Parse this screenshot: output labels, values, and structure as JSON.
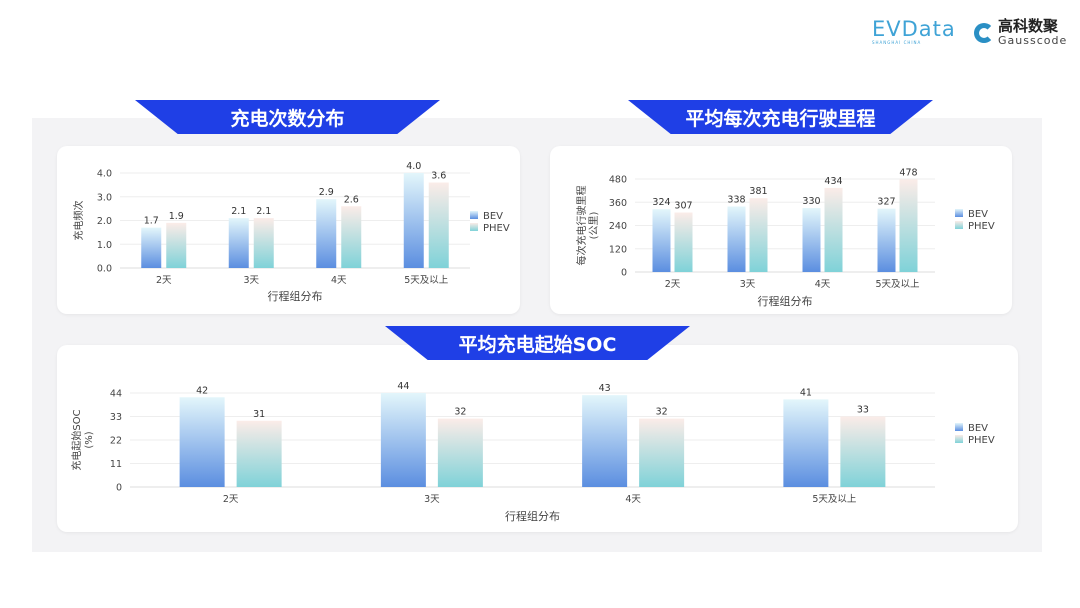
{
  "logos": {
    "evdata": "EVData",
    "evdata_sub": "SHANGHAI CHINA",
    "gauss_cn": "高科数聚",
    "gauss_en": "Gausscode"
  },
  "colors": {
    "banner": "#1f3fe6",
    "bev_top": "#e3f6fb",
    "bev_bottom": "#5b8ee0",
    "phev_top": "#fbece8",
    "phev_bottom": "#7fd2d8"
  },
  "chart_data": [
    {
      "type": "bar",
      "title": "充电次数分布",
      "xlabel": "行程组分布",
      "ylabel": "充电频次",
      "categories": [
        "2天",
        "3天",
        "4天",
        "5天及以上"
      ],
      "ylim": [
        0,
        4.0
      ],
      "yticks": [
        "0.0",
        "1.0",
        "2.0",
        "3.0",
        "4.0"
      ],
      "legend": "right",
      "grid": true,
      "series": [
        {
          "name": "BEV",
          "values": [
            1.7,
            2.1,
            2.9,
            4.0
          ],
          "labels": [
            "1.7",
            "2.1",
            "2.9",
            "4.0"
          ]
        },
        {
          "name": "PHEV",
          "values": [
            1.9,
            2.1,
            2.6,
            3.6
          ],
          "labels": [
            "1.9",
            "2.1",
            "2.6",
            "3.6"
          ]
        }
      ]
    },
    {
      "type": "bar",
      "title": "平均每次充电行驶里程",
      "xlabel": "行程组分布",
      "ylabel": "每次充电行驶里程",
      "ylabel2": "(公里)",
      "categories": [
        "2天",
        "3天",
        "4天",
        "5天及以上"
      ],
      "ylim": [
        0,
        480
      ],
      "yticks": [
        "0",
        "120",
        "240",
        "360",
        "480"
      ],
      "legend": "right",
      "grid": true,
      "series": [
        {
          "name": "BEV",
          "values": [
            324,
            338,
            330,
            327
          ],
          "labels": [
            "324",
            "338",
            "330",
            "327"
          ]
        },
        {
          "name": "PHEV",
          "values": [
            307,
            381,
            434,
            478
          ],
          "labels": [
            "307",
            "381",
            "434",
            "478"
          ]
        }
      ]
    },
    {
      "type": "bar",
      "title": "平均充电起始SOC",
      "xlabel": "行程组分布",
      "ylabel": "充电起始SOC",
      "ylabel2": "(%)",
      "categories": [
        "2天",
        "3天",
        "4天",
        "5天及以上"
      ],
      "ylim": [
        0,
        44
      ],
      "yticks": [
        "0",
        "11",
        "22",
        "33",
        "44"
      ],
      "legend": "right",
      "grid": true,
      "series": [
        {
          "name": "BEV",
          "values": [
            42,
            44,
            43,
            41
          ],
          "labels": [
            "42",
            "44",
            "43",
            "41"
          ]
        },
        {
          "name": "PHEV",
          "values": [
            31,
            32,
            32,
            33
          ],
          "labels": [
            "31",
            "32",
            "32",
            "33"
          ]
        }
      ]
    }
  ]
}
